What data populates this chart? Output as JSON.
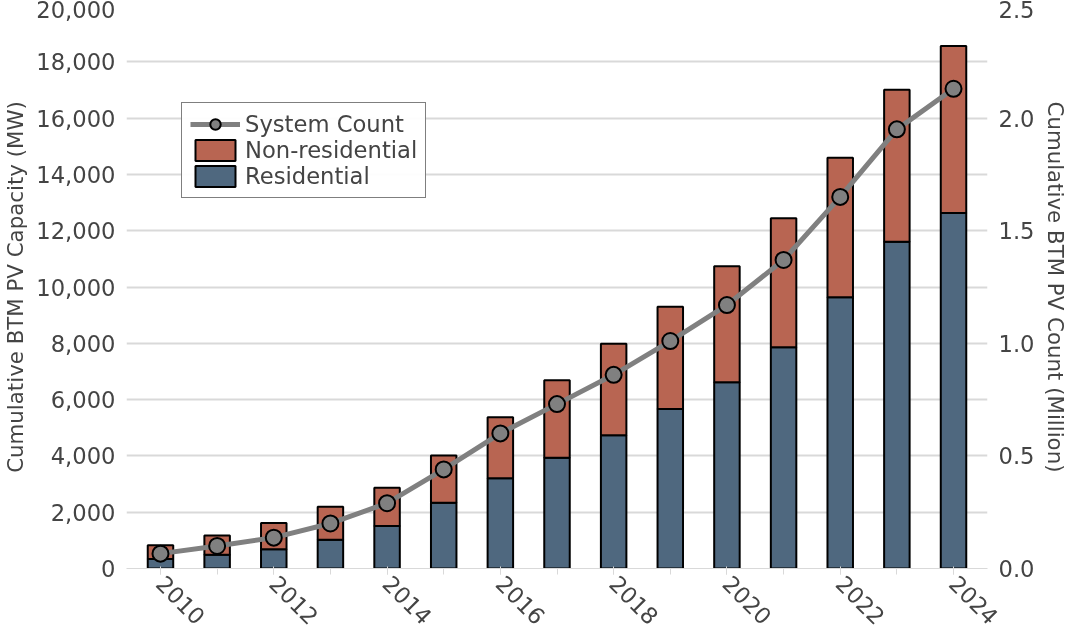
{
  "chart_data": {
    "type": "bar",
    "stacked": true,
    "ylabel": "Cumulative BTM PV Capacity (MW)",
    "y2label": "Cumulative BTM PV Count (Million)",
    "x": [
      2010,
      2011,
      2012,
      2013,
      2014,
      2015,
      2016,
      2017,
      2018,
      2019,
      2020,
      2021,
      2022,
      2023,
      2024
    ],
    "xlim": [
      2009.4,
      2024.6
    ],
    "xticks": [
      2010,
      2012,
      2014,
      2016,
      2018,
      2020,
      2022,
      2024
    ],
    "ylim": [
      0,
      20000
    ],
    "yticks": [
      0,
      {
        "value": 2000,
        "label": "2,000"
      },
      {
        "value": 4000,
        "label": "4,000"
      },
      {
        "value": 6000,
        "label": "6,000"
      },
      {
        "value": 8000,
        "label": "8,000"
      },
      {
        "value": 10000,
        "label": "10,000"
      },
      {
        "value": 12000,
        "label": "12,000"
      },
      {
        "value": 14000,
        "label": "14,000"
      },
      {
        "value": 16000,
        "label": "16,000"
      },
      {
        "value": 18000,
        "label": "18,000"
      },
      {
        "value": 20000,
        "label": "20,000"
      }
    ],
    "y2lim": [
      0,
      2.5
    ],
    "y2ticks": [
      {
        "value": 0,
        "label": "0.0"
      },
      0.5,
      {
        "value": 1,
        "label": "1.0"
      },
      1.5,
      {
        "value": 2,
        "label": "2.0"
      },
      2.5
    ],
    "grid": "y",
    "legend": "top left",
    "marker": "circle",
    "series": [
      {
        "name": "Residential",
        "color": "#4f687f",
        "values": [
          340,
          490,
          680,
          1020,
          1510,
          2340,
          3210,
          3930,
          4730,
          5670,
          6620,
          7860,
          9640,
          11610,
          12630
        ]
      },
      {
        "name": "Non-residential",
        "color": "#b86552",
        "values": [
          490,
          680,
          940,
          1170,
          1360,
          1670,
          2160,
          2760,
          3250,
          3630,
          4120,
          4580,
          4950,
          5400,
          5930
        ]
      },
      {
        "name": "System Count",
        "type": "line",
        "axis": "y2",
        "color": "#808080",
        "values": [
          0.066,
          0.1,
          0.137,
          0.2,
          0.29,
          0.44,
          0.6,
          0.73,
          0.86,
          1.01,
          1.17,
          1.37,
          1.65,
          1.95,
          2.13
        ]
      }
    ]
  }
}
